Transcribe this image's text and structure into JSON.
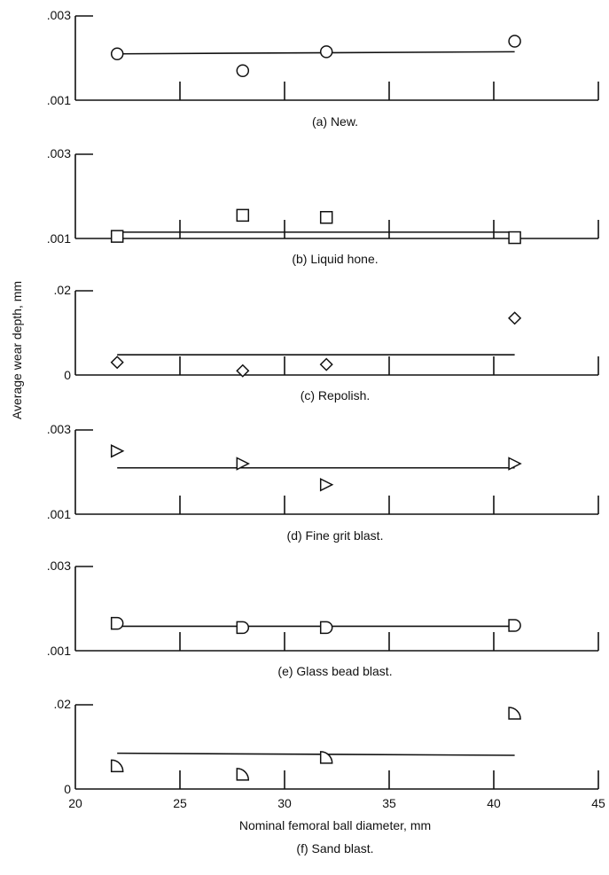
{
  "figure": {
    "ylabel": "Average wear depth,  mm",
    "xlabel": "Nominal femoral ball diameter,  mm",
    "xticks": [
      "20",
      "25",
      "30",
      "35",
      "40",
      "45"
    ]
  },
  "chart_data": [
    {
      "type": "scatter",
      "caption": "(a) New.",
      "marker": "circle-icon",
      "xlim": [
        20,
        45
      ],
      "ylim": [
        0.001,
        0.003
      ],
      "yticks": [
        ".003",
        ".001"
      ],
      "points": [
        {
          "x": 22,
          "y": 0.0021
        },
        {
          "x": 28,
          "y": 0.0017
        },
        {
          "x": 32,
          "y": 0.00215
        },
        {
          "x": 41,
          "y": 0.0024
        }
      ],
      "fit": [
        {
          "x": 22,
          "y": 0.0021
        },
        {
          "x": 41,
          "y": 0.00215
        }
      ]
    },
    {
      "type": "scatter",
      "caption": "(b) Liquid hone.",
      "marker": "square-icon",
      "xlim": [
        20,
        45
      ],
      "ylim": [
        0.001,
        0.003
      ],
      "yticks": [
        ".003",
        ".001"
      ],
      "points": [
        {
          "x": 22,
          "y": 0.00105
        },
        {
          "x": 28,
          "y": 0.00155
        },
        {
          "x": 32,
          "y": 0.0015
        },
        {
          "x": 41,
          "y": 0.00102
        }
      ],
      "fit": [
        {
          "x": 22,
          "y": 0.00115
        },
        {
          "x": 41,
          "y": 0.00115
        }
      ]
    },
    {
      "type": "scatter",
      "caption": "(c) Repolish.",
      "marker": "diamond-icon",
      "xlim": [
        20,
        45
      ],
      "ylim": [
        0,
        0.02
      ],
      "yticks": [
        ".02",
        "0"
      ],
      "points": [
        {
          "x": 22,
          "y": 0.003
        },
        {
          "x": 28,
          "y": 0.001
        },
        {
          "x": 32,
          "y": 0.0025
        },
        {
          "x": 41,
          "y": 0.0135
        }
      ],
      "fit": [
        {
          "x": 22,
          "y": 0.0048
        },
        {
          "x": 41,
          "y": 0.0048
        }
      ]
    },
    {
      "type": "scatter",
      "caption": "(d) Fine grit blast.",
      "marker": "triangle-right-icon",
      "xlim": [
        20,
        45
      ],
      "ylim": [
        0.001,
        0.003
      ],
      "yticks": [
        ".003",
        ".001"
      ],
      "points": [
        {
          "x": 22,
          "y": 0.0025
        },
        {
          "x": 28,
          "y": 0.0022
        },
        {
          "x": 32,
          "y": 0.0017
        },
        {
          "x": 41,
          "y": 0.0022
        }
      ],
      "fit": [
        {
          "x": 22,
          "y": 0.0021
        },
        {
          "x": 41,
          "y": 0.0021
        }
      ]
    },
    {
      "type": "scatter",
      "caption": "(e) Glass bead blast.",
      "marker": "half-circle-icon",
      "xlim": [
        20,
        45
      ],
      "ylim": [
        0.001,
        0.003
      ],
      "yticks": [
        ".003",
        ".001"
      ],
      "points": [
        {
          "x": 22,
          "y": 0.00165
        },
        {
          "x": 28,
          "y": 0.00155
        },
        {
          "x": 32,
          "y": 0.00155
        },
        {
          "x": 41,
          "y": 0.0016
        }
      ],
      "fit": [
        {
          "x": 22,
          "y": 0.00158
        },
        {
          "x": 41,
          "y": 0.00158
        }
      ]
    },
    {
      "type": "scatter",
      "caption": "(f) Sand blast.",
      "marker": "quarter-circle-icon",
      "xlim": [
        20,
        45
      ],
      "ylim": [
        0,
        0.02
      ],
      "yticks": [
        ".02",
        "0"
      ],
      "points": [
        {
          "x": 22,
          "y": 0.0055
        },
        {
          "x": 28,
          "y": 0.0035
        },
        {
          "x": 32,
          "y": 0.0075
        },
        {
          "x": 41,
          "y": 0.018
        }
      ],
      "fit": [
        {
          "x": 22,
          "y": 0.0085
        },
        {
          "x": 41,
          "y": 0.008
        }
      ]
    }
  ]
}
